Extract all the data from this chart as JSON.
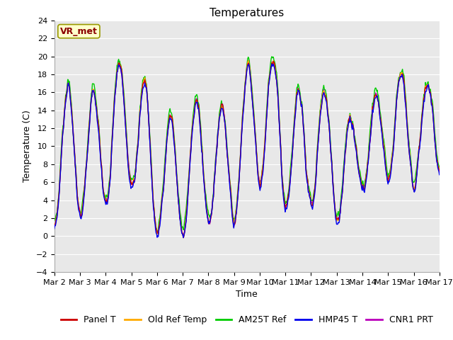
{
  "title": "Temperatures",
  "xlabel": "Time",
  "ylabel": "Temperature (C)",
  "ylim": [
    -4,
    24
  ],
  "yticks": [
    -4,
    -2,
    0,
    2,
    4,
    6,
    8,
    10,
    12,
    14,
    16,
    18,
    20,
    22,
    24
  ],
  "x_labels": [
    "Mar 2",
    "Mar 3",
    "Mar 4",
    "Mar 5",
    "Mar 6",
    "Mar 7",
    "Mar 8",
    "Mar 9",
    "Mar 10",
    "Mar 11",
    "Mar 12",
    "Mar 13",
    "Mar 14",
    "Mar 15",
    "Mar 16",
    "Mar 17"
  ],
  "series": [
    {
      "name": "Panel T",
      "color": "#cc0000"
    },
    {
      "name": "Old Ref Temp",
      "color": "#ffaa00"
    },
    {
      "name": "AM25T Ref",
      "color": "#00cc00"
    },
    {
      "name": "HMP45 T",
      "color": "#0000ee"
    },
    {
      "name": "CNR1 PRT",
      "color": "#bb00bb"
    }
  ],
  "annotation_text": "VR_met",
  "annotation_color": "#8b0000",
  "annotation_bg": "#ffffcc",
  "annotation_edge": "#999900",
  "fig_bg_color": "#ffffff",
  "plot_bg_color": "#e8e8e8",
  "grid_color": "#ffffff",
  "n_points": 720,
  "days": 15,
  "linewidth": 1.0,
  "title_fontsize": 11,
  "tick_fontsize": 8,
  "label_fontsize": 9,
  "legend_fontsize": 9
}
